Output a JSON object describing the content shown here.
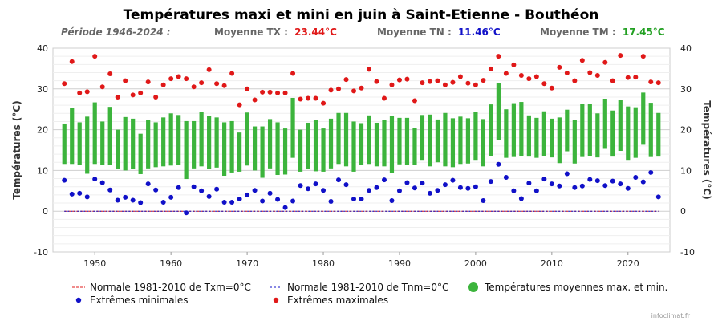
{
  "chart_data": {
    "type": "bar",
    "title": "Températures maxi et mini en juin à Saint-Etienne - Bouthéon",
    "subtitle": {
      "period": "Période 1946-2024 :",
      "tx_label": "Moyenne TX :",
      "tx_value": "23.44°C",
      "tn_label": "Moyenne TN :",
      "tn_value": "11.46°C",
      "tm_label": "Moyenne TM :",
      "tm_value": "17.45°C"
    },
    "ylabel": "Températures (°C)",
    "ylabel_right": "Températures (°C)",
    "ylim": [
      -10,
      40
    ],
    "xlim": [
      1944.5,
      2025.5
    ],
    "y_ticks": [
      "-10",
      "0",
      "10",
      "20",
      "30",
      "40"
    ],
    "x_ticks": [
      "1950",
      "1960",
      "1970",
      "1980",
      "1990",
      "2000",
      "2010",
      "2020"
    ],
    "grid": true,
    "years": [
      1946,
      1947,
      1948,
      1949,
      1950,
      1951,
      1952,
      1953,
      1954,
      1955,
      1956,
      1957,
      1958,
      1959,
      1960,
      1961,
      1962,
      1963,
      1964,
      1965,
      1966,
      1967,
      1968,
      1969,
      1970,
      1971,
      1972,
      1973,
      1974,
      1975,
      1976,
      1977,
      1978,
      1979,
      1980,
      1981,
      1982,
      1983,
      1984,
      1985,
      1986,
      1987,
      1988,
      1989,
      1990,
      1991,
      1992,
      1993,
      1994,
      1995,
      1996,
      1997,
      1998,
      1999,
      2000,
      2001,
      2002,
      2003,
      2004,
      2005,
      2006,
      2007,
      2008,
      2009,
      2010,
      2011,
      2012,
      2013,
      2014,
      2015,
      2016,
      2017,
      2018,
      2019,
      2020,
      2021,
      2022,
      2023,
      2024
    ],
    "series": [
      {
        "name": "Températures moyennes max. et min.",
        "kind": "range_bar",
        "color": "#3cb43c",
        "high": [
          21.5,
          25.3,
          21.8,
          23.2,
          26.7,
          22.0,
          25.6,
          20.0,
          23.1,
          22.7,
          19.0,
          22.3,
          21.8,
          23.0,
          24.0,
          23.6,
          22.1,
          22.1,
          24.3,
          23.3,
          23.0,
          21.8,
          22.1,
          19.3,
          24.2,
          20.8,
          20.8,
          22.6,
          21.8,
          20.3,
          27.8,
          20.0,
          21.7,
          22.3,
          20.3,
          22.7,
          24.1,
          24.1,
          22.0,
          21.6,
          23.5,
          21.7,
          22.3,
          23.3,
          22.9,
          22.9,
          20.5,
          23.6,
          23.7,
          22.5,
          24.1,
          22.8,
          23.2,
          22.8,
          24.3,
          22.6,
          26.2,
          31.4,
          25.0,
          26.5,
          26.8,
          23.5,
          22.9,
          24.5,
          22.7,
          23.0,
          24.9,
          22.3,
          26.3,
          26.3,
          24.0,
          27.6,
          24.7,
          27.4,
          25.7,
          25.5,
          29.1,
          26.6,
          24.1
        ],
        "low": [
          11.6,
          11.6,
          11.3,
          9.2,
          11.6,
          11.4,
          11.3,
          10.4,
          10.0,
          10.4,
          9.1,
          10.5,
          10.8,
          11.0,
          11.2,
          11.3,
          7.9,
          10.5,
          11.0,
          10.4,
          10.7,
          8.7,
          9.5,
          9.7,
          11.2,
          10.0,
          8.2,
          10.5,
          8.9,
          9.0,
          13.1,
          9.7,
          10.4,
          9.8,
          9.7,
          10.5,
          11.6,
          11.0,
          9.7,
          11.3,
          11.6,
          11.0,
          11.0,
          9.3,
          11.5,
          11.3,
          11.3,
          12.4,
          11.0,
          12.0,
          11.0,
          10.8,
          11.6,
          11.7,
          12.4,
          11.0,
          13.6,
          17.5,
          13.1,
          13.3,
          13.6,
          13.4,
          13.1,
          13.5,
          13.2,
          11.8,
          14.7,
          11.7,
          13.3,
          13.6,
          13.2,
          15.3,
          13.4,
          14.8,
          12.4,
          13.1,
          16.3,
          13.3,
          13.4
        ]
      },
      {
        "name": "Extrêmes maximales",
        "kind": "points",
        "color": "#e01818",
        "values": [
          31.3,
          36.7,
          29.0,
          29.3,
          38.0,
          30.5,
          33.7,
          28.0,
          32.0,
          28.5,
          29.0,
          31.7,
          28.0,
          31.0,
          32.5,
          33.0,
          32.5,
          30.5,
          31.5,
          34.7,
          31.3,
          30.8,
          33.8,
          26.1,
          30.0,
          27.3,
          29.2,
          29.2,
          29.0,
          29.0,
          33.8,
          27.5,
          27.7,
          27.7,
          26.5,
          29.7,
          30.0,
          32.3,
          29.5,
          30.2,
          34.8,
          31.8,
          27.7,
          31.0,
          32.2,
          32.4,
          27.1,
          31.5,
          31.8,
          32.0,
          31.0,
          31.6,
          33.0,
          31.4,
          31.0,
          32.1,
          34.9,
          38.0,
          33.8,
          35.9,
          33.3,
          32.5,
          33.0,
          31.3,
          30.2,
          35.3,
          33.9,
          32.0,
          37.0,
          34.0,
          33.3,
          36.5,
          32.0,
          38.2,
          32.8,
          32.9,
          38.0,
          31.7,
          31.5
        ]
      },
      {
        "name": "Extrêmes minimales",
        "kind": "points",
        "color": "#1010c8",
        "values": [
          7.6,
          4.2,
          4.4,
          3.5,
          7.9,
          7.0,
          5.2,
          2.7,
          3.4,
          2.7,
          2.1,
          6.7,
          5.2,
          2.2,
          3.4,
          5.8,
          -0.4,
          6.0,
          5.0,
          3.6,
          5.4,
          2.2,
          2.2,
          3.0,
          4.0,
          5.1,
          2.5,
          4.4,
          2.9,
          0.9,
          2.5,
          6.3,
          5.5,
          6.7,
          5.1,
          2.4,
          7.7,
          6.5,
          3.0,
          3.0,
          5.1,
          5.8,
          7.7,
          2.6,
          5.0,
          7.0,
          5.7,
          6.9,
          4.4,
          5.1,
          6.5,
          7.6,
          5.8,
          5.6,
          6.0,
          2.6,
          7.3,
          11.5,
          8.3,
          5.0,
          3.1,
          6.9,
          5.0,
          7.9,
          6.7,
          6.2,
          9.2,
          5.8,
          6.2,
          7.8,
          7.5,
          6.3,
          7.4,
          6.7,
          5.6,
          8.3,
          7.2,
          9.5,
          3.5
        ]
      },
      {
        "name": "Normale 1981-2010 de Txm=0°C",
        "kind": "line",
        "color": "#e01818",
        "value": 0
      },
      {
        "name": "Normale 1981-2010 de Tnm=0°C",
        "kind": "line",
        "color": "#1010c8",
        "value": 0
      }
    ],
    "legend_position": "bottom"
  },
  "credit": "infoclimat.fr"
}
